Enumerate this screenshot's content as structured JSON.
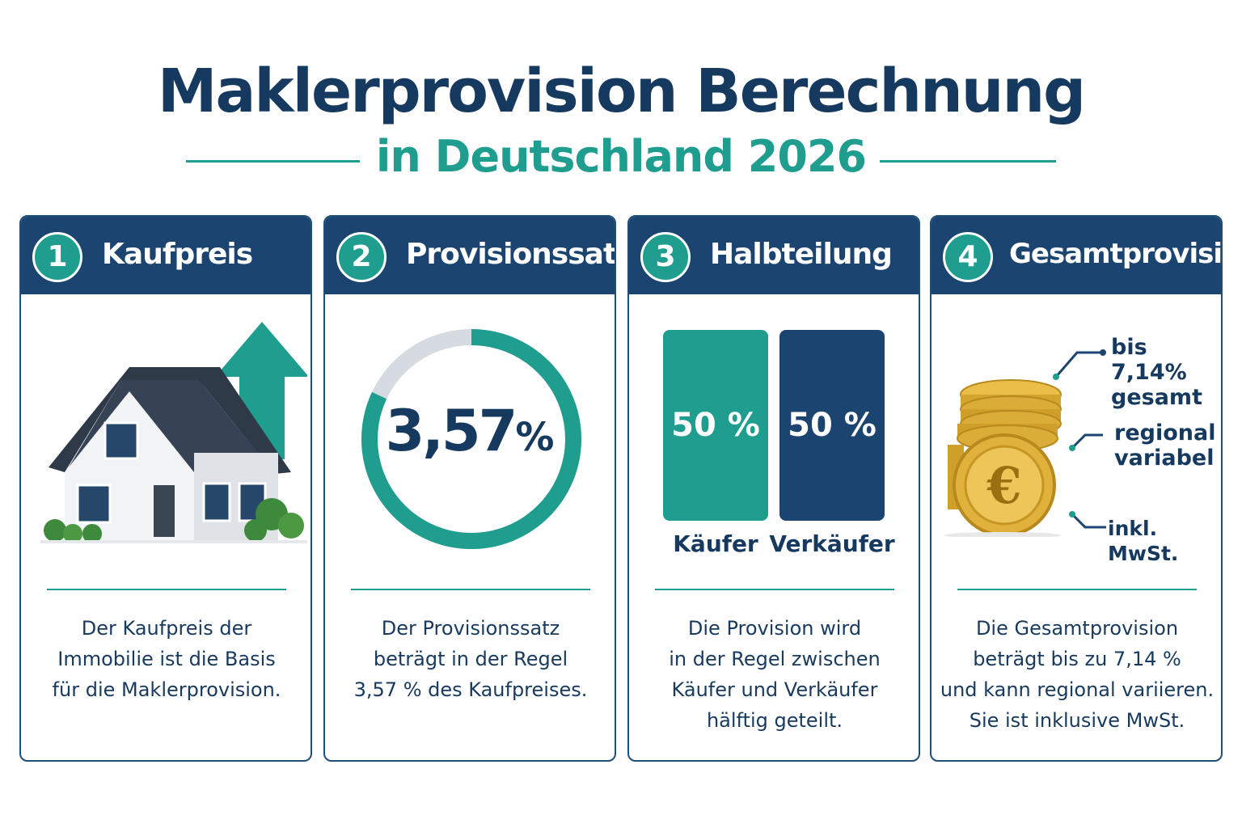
{
  "header": {
    "title": "Maklerprovision Berechnung",
    "subtitle": "in Deutschland 2026"
  },
  "colors": {
    "navy": "#1c4470",
    "teal": "#1f9d8f",
    "text": "#163a5f",
    "gold": "#d4a52c"
  },
  "cards": [
    {
      "number": "1",
      "title": "Kaufpreis",
      "icon": "house-with-arrow-icon",
      "description": [
        "Der Kaufpreis der",
        "Immobilie ist die Basis",
        "für die Maklerprovision."
      ]
    },
    {
      "number": "2",
      "title": "Provisionssatz",
      "gauge": {
        "value": "3,57",
        "unit": "%",
        "fill_fraction": 0.82
      },
      "description": [
        "Der Provisionssatz",
        "beträgt in der Regel",
        "3,57 % des Kaufpreises."
      ]
    },
    {
      "number": "3",
      "title": "Halbteilung",
      "split": [
        {
          "value": "50 %",
          "label": "Käufer"
        },
        {
          "value": "50 %",
          "label": "Verkäufer"
        }
      ],
      "description": [
        "Die Provision wird",
        "in der Regel zwischen",
        "Käufer und Verkäufer",
        "hälftig geteilt."
      ]
    },
    {
      "number": "4",
      "title": "Gesamtprovision",
      "icon": "euro-coins-icon",
      "notes": [
        {
          "line1": "bis 7,14%",
          "line2": "gesamt"
        },
        {
          "line1": "regional",
          "line2": "variabel"
        },
        {
          "line1": "inkl. MwSt.",
          "line2": ""
        }
      ],
      "description": [
        "Die Gesamtprovision",
        "beträgt bis zu 7,14 %",
        "und kann regional variieren.",
        "Sie ist inklusive MwSt."
      ]
    }
  ]
}
